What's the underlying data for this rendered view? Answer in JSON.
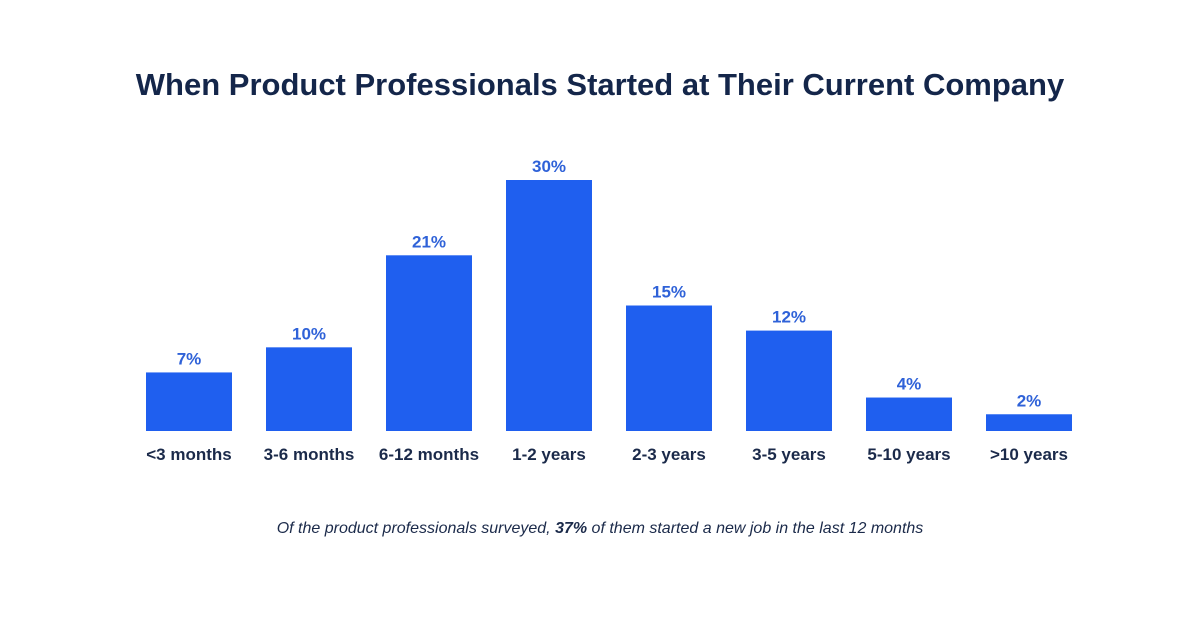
{
  "chart_data": {
    "type": "bar",
    "title": "When Product Professionals Started at Their Current Company",
    "categories": [
      "<3 months",
      "3-6 months",
      "6-12 months",
      "1-2 years",
      "2-3 years",
      "3-5 years",
      "5-10 years",
      ">10 years"
    ],
    "values": [
      7,
      10,
      21,
      30,
      15,
      12,
      4,
      2
    ],
    "value_labels": [
      "7%",
      "10%",
      "21%",
      "30%",
      "15%",
      "12%",
      "4%",
      "2%"
    ],
    "unit": "%",
    "ylim": [
      0,
      30
    ],
    "grid": false,
    "axes_visible": false,
    "bar_color": "#1f5fef",
    "label_color": "#2f62d8",
    "text_color": "#14264a"
  },
  "footnote": {
    "before": "Of the product professionals surveyed, ",
    "highlight": "37%",
    "after": " of them started a new job in the last 12 months"
  }
}
